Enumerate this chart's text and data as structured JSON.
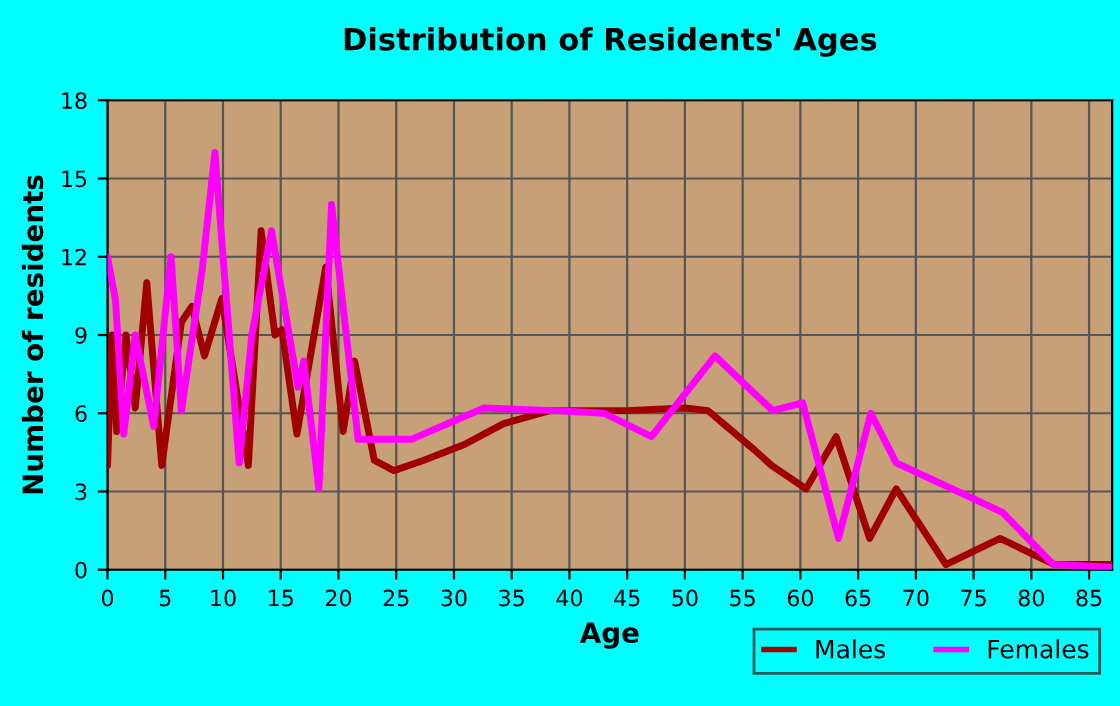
{
  "chart_data": {
    "type": "line",
    "title": "Distribution of Residents' Ages",
    "xlabel": "Age",
    "ylabel": "Number of residents",
    "xlim": [
      0,
      87
    ],
    "xticks": [
      0,
      5,
      10,
      15,
      20,
      25,
      30,
      35,
      40,
      45,
      50,
      55,
      60,
      65,
      70,
      75,
      80,
      85
    ],
    "ylim": [
      0,
      18
    ],
    "yticks": [
      0,
      3,
      6,
      9,
      12,
      15,
      18
    ],
    "grid": true,
    "legend": "bottom right",
    "marker": "none",
    "line_style": "solid",
    "series": [
      {
        "name": "Males",
        "color": "#a00000",
        "x": [
          0,
          0.4,
          0.8,
          1.6,
          2.4,
          3.4,
          4.7,
          6.4,
          7.3,
          8.4,
          9.9,
          12.2,
          13.3,
          14.5,
          15.1,
          16.4,
          18.9,
          20.4,
          21.4,
          23.1,
          24.8,
          27.4,
          30.9,
          34.3,
          38.3,
          45,
          50,
          52,
          56,
          57.5,
          60.5,
          63.1,
          66,
          68.3,
          72.6,
          77.3,
          82,
          87
        ],
        "values": [
          4,
          9,
          5.3,
          9,
          6.2,
          11,
          4,
          9.5,
          10.1,
          8.2,
          10.4,
          4,
          13,
          9,
          9.2,
          5.2,
          11.6,
          5.3,
          8,
          4.2,
          3.8,
          4.2,
          4.8,
          5.6,
          6.1,
          6.1,
          6.2,
          6.1,
          4.6,
          4,
          3.1,
          5.1,
          1.2,
          3.1,
          0.2,
          1.2,
          0.2,
          0.2
        ]
      },
      {
        "name": "Females",
        "color": "#ff00ff",
        "x": [
          0,
          0.7,
          1.4,
          2.4,
          4,
          5.5,
          6.4,
          8.2,
          9.3,
          11.4,
          12.5,
          14.2,
          16.5,
          17,
          18.3,
          19.4,
          21.7,
          22.8,
          26.3,
          32.6,
          38.9,
          43,
          47.1,
          52.6,
          57.6,
          60.2,
          63.3,
          66.1,
          68.3,
          74.6,
          77.5,
          81.9,
          87
        ],
        "values": [
          12,
          10.3,
          5.2,
          9,
          5.5,
          12,
          6.1,
          11.5,
          16,
          4.1,
          9,
          13,
          7,
          8,
          3.1,
          14,
          5,
          5,
          5,
          6.2,
          6.1,
          6,
          5.1,
          8.2,
          6.1,
          6.4,
          1.2,
          6,
          4.1,
          2.8,
          2.2,
          0.2,
          0.1
        ]
      }
    ]
  }
}
